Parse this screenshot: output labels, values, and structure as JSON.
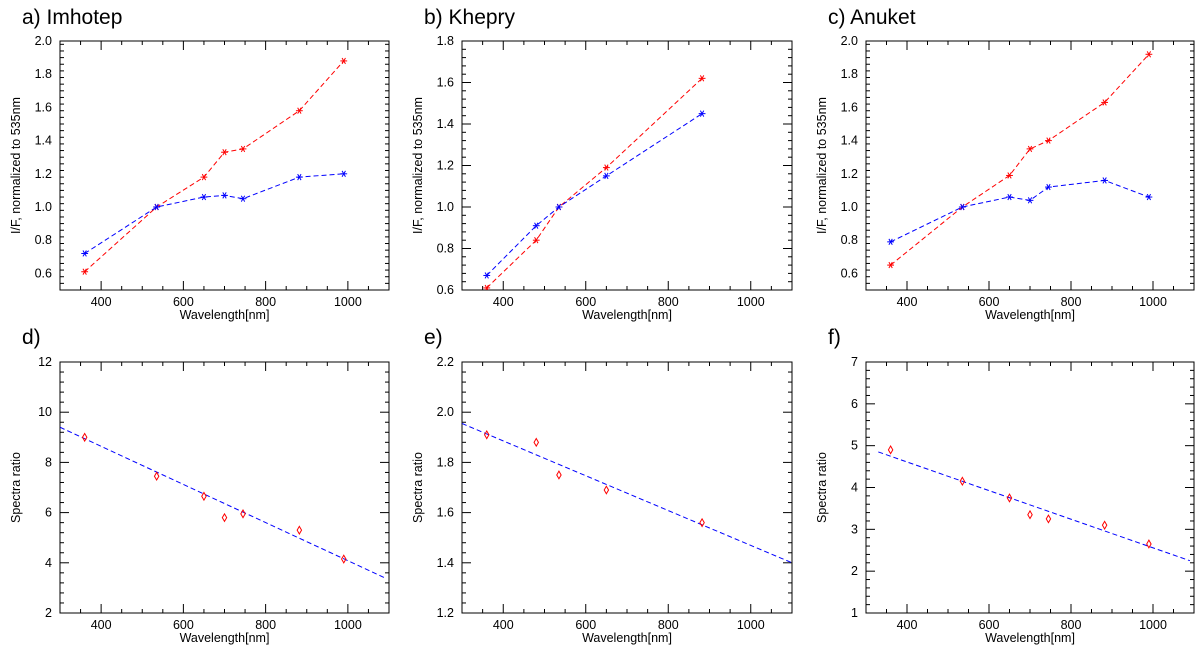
{
  "colors": {
    "red_series": "#ff0000",
    "blue_series": "#0000ff",
    "fit_line": "#0000ff",
    "ratio_points": "#ff0000"
  },
  "chart_data": [
    {
      "id": "a",
      "type": "line",
      "title": "a) Imhotep",
      "xlabel": "Wavelength[nm]",
      "ylabel": "I/F, normalized to 535nm",
      "xlim": [
        300,
        1100
      ],
      "ylim": [
        0.5,
        2.0
      ],
      "xticks": [
        400,
        600,
        800,
        1000
      ],
      "yticks": [
        0.6,
        0.8,
        1.0,
        1.2,
        1.4,
        1.6,
        1.8,
        2.0
      ],
      "ytick_labels": [
        "0.6",
        "0.8",
        "1.0",
        "1.2",
        "1.4",
        "1.6",
        "1.8",
        "2.0"
      ],
      "series": [
        {
          "name": "red",
          "color": "#ff0000",
          "x": [
            360,
            535,
            650,
            700,
            745,
            882,
            990
          ],
          "y": [
            0.61,
            1.0,
            1.18,
            1.33,
            1.35,
            1.58,
            1.88
          ]
        },
        {
          "name": "blue",
          "color": "#0000ff",
          "x": [
            360,
            535,
            650,
            700,
            745,
            882,
            990
          ],
          "y": [
            0.72,
            1.0,
            1.06,
            1.07,
            1.05,
            1.18,
            1.2
          ]
        }
      ]
    },
    {
      "id": "b",
      "type": "line",
      "title": "b) Khepry",
      "xlabel": "Wavelength[nm]",
      "ylabel": "I/F, normalized to 535nm",
      "xlim": [
        300,
        1100
      ],
      "ylim": [
        0.6,
        1.8
      ],
      "xticks": [
        400,
        600,
        800,
        1000
      ],
      "yticks": [
        0.6,
        0.8,
        1.0,
        1.2,
        1.4,
        1.6,
        1.8
      ],
      "ytick_labels": [
        "0.6",
        "0.8",
        "1.0",
        "1.2",
        "1.4",
        "1.6",
        "1.8"
      ],
      "series": [
        {
          "name": "red",
          "color": "#ff0000",
          "x": [
            360,
            480,
            535,
            650,
            882
          ],
          "y": [
            0.61,
            0.84,
            1.0,
            1.19,
            1.62
          ]
        },
        {
          "name": "blue",
          "color": "#0000ff",
          "x": [
            360,
            480,
            535,
            650,
            882
          ],
          "y": [
            0.67,
            0.91,
            1.0,
            1.15,
            1.45
          ]
        }
      ]
    },
    {
      "id": "c",
      "type": "line",
      "title": "c) Anuket",
      "xlabel": "Wavelength[nm]",
      "ylabel": "I/F, normalized to 535nm",
      "xlim": [
        300,
        1100
      ],
      "ylim": [
        0.5,
        2.0
      ],
      "xticks": [
        400,
        600,
        800,
        1000
      ],
      "yticks": [
        0.6,
        0.8,
        1.0,
        1.2,
        1.4,
        1.6,
        1.8,
        2.0
      ],
      "ytick_labels": [
        "0.6",
        "0.8",
        "1.0",
        "1.2",
        "1.4",
        "1.6",
        "1.8",
        "2.0"
      ],
      "series": [
        {
          "name": "red",
          "color": "#ff0000",
          "x": [
            360,
            535,
            650,
            700,
            745,
            882,
            990
          ],
          "y": [
            0.65,
            1.0,
            1.19,
            1.35,
            1.4,
            1.63,
            1.92
          ]
        },
        {
          "name": "blue",
          "color": "#0000ff",
          "x": [
            360,
            535,
            650,
            700,
            745,
            882,
            990
          ],
          "y": [
            0.79,
            1.0,
            1.06,
            1.04,
            1.12,
            1.16,
            1.06
          ]
        }
      ]
    },
    {
      "id": "d",
      "type": "scatter",
      "title": "d)",
      "xlabel": "Wavelength[nm]",
      "ylabel": "Spectra ratio",
      "xlim": [
        300,
        1100
      ],
      "ylim": [
        2,
        12
      ],
      "xticks": [
        400,
        600,
        800,
        1000
      ],
      "yticks": [
        2,
        4,
        6,
        8,
        10,
        12
      ],
      "ytick_labels": [
        "2",
        "4",
        "6",
        "8",
        "10",
        "12"
      ],
      "points": {
        "color": "#ff0000",
        "x": [
          360,
          535,
          650,
          700,
          745,
          882,
          990
        ],
        "y": [
          9.0,
          7.45,
          6.65,
          5.8,
          5.95,
          5.3,
          4.15
        ]
      },
      "fit_line": {
        "color": "#0000ff",
        "x": [
          300,
          1090
        ],
        "y": [
          9.4,
          3.4
        ]
      }
    },
    {
      "id": "e",
      "type": "scatter",
      "title": "e)",
      "xlabel": "Wavelength[nm]",
      "ylabel": "Spectra ratio",
      "xlim": [
        300,
        1100
      ],
      "ylim": [
        1.2,
        2.2
      ],
      "xticks": [
        400,
        600,
        800,
        1000
      ],
      "yticks": [
        1.2,
        1.4,
        1.6,
        1.8,
        2.0,
        2.2
      ],
      "ytick_labels": [
        "1.2",
        "1.4",
        "1.6",
        "1.8",
        "2.0",
        "2.2"
      ],
      "points": {
        "color": "#ff0000",
        "x": [
          360,
          480,
          535,
          650,
          882
        ],
        "y": [
          1.91,
          1.88,
          1.75,
          1.69,
          1.56
        ]
      },
      "fit_line": {
        "color": "#0000ff",
        "x": [
          300,
          1100
        ],
        "y": [
          1.955,
          1.4
        ]
      }
    },
    {
      "id": "f",
      "type": "scatter",
      "title": "f)",
      "xlabel": "Wavelength[nm]",
      "ylabel": "Spectra ratio",
      "xlim": [
        300,
        1100
      ],
      "ylim": [
        1,
        7
      ],
      "xticks": [
        400,
        600,
        800,
        1000
      ],
      "yticks": [
        1,
        2,
        3,
        4,
        5,
        6,
        7
      ],
      "ytick_labels": [
        "1",
        "2",
        "3",
        "4",
        "5",
        "6",
        "7"
      ],
      "points": {
        "color": "#ff0000",
        "x": [
          360,
          535,
          650,
          700,
          745,
          882,
          990
        ],
        "y": [
          4.9,
          4.15,
          3.75,
          3.35,
          3.25,
          3.1,
          2.65
        ]
      },
      "fit_line": {
        "color": "#0000ff",
        "x": [
          330,
          1090
        ],
        "y": [
          4.85,
          2.25
        ]
      }
    }
  ]
}
